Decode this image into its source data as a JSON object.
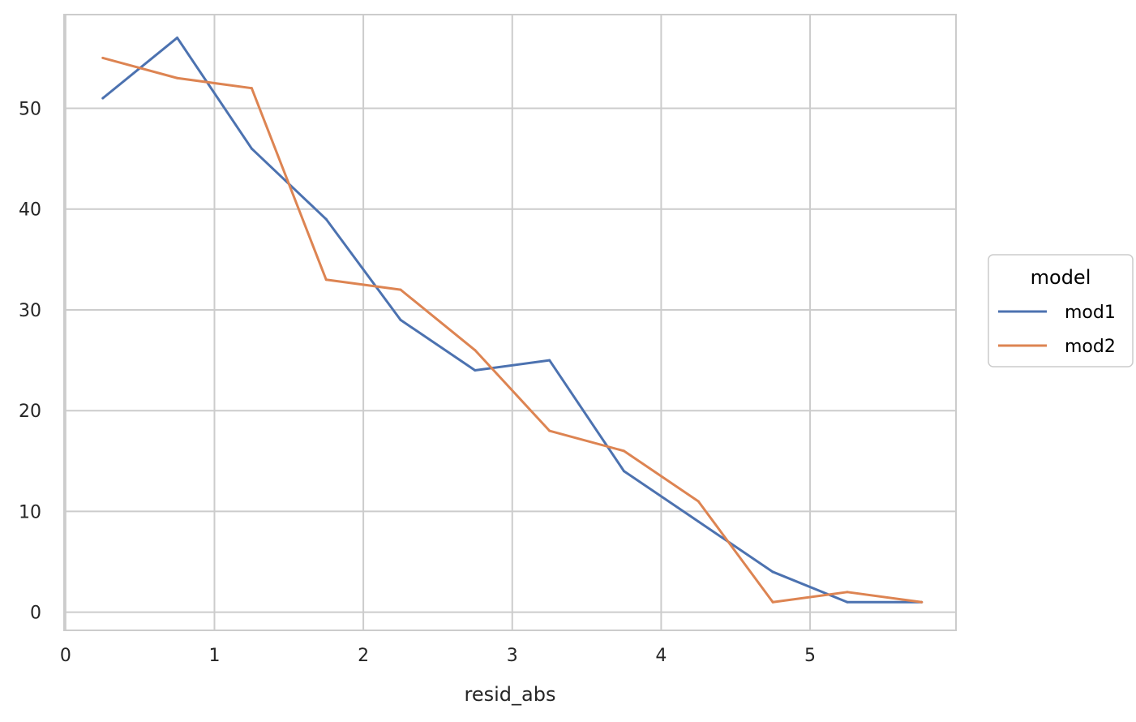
{
  "chart_data": {
    "type": "line",
    "xlabel": "resid_abs",
    "ylabel": "",
    "xlim": [
      -0.01,
      5.98
    ],
    "ylim": [
      -1.8,
      59.3
    ],
    "xticks": [
      0,
      1,
      2,
      3,
      4,
      5
    ],
    "yticks": [
      0,
      10,
      20,
      30,
      40,
      50
    ],
    "grid": true,
    "legend": {
      "title": "model",
      "placement": "right"
    },
    "x": [
      0.25,
      0.75,
      1.25,
      1.75,
      2.25,
      2.75,
      3.25,
      3.75,
      4.25,
      4.75,
      5.25,
      5.75
    ],
    "series": [
      {
        "name": "mod1",
        "color": "#4c72b0",
        "values": [
          51,
          57,
          46,
          39,
          29,
          24,
          25,
          14,
          9,
          4,
          1,
          1
        ]
      },
      {
        "name": "mod2",
        "color": "#dd8452",
        "values": [
          55,
          53,
          52,
          33,
          32,
          26,
          18,
          16,
          11,
          1,
          2,
          1
        ]
      }
    ]
  }
}
